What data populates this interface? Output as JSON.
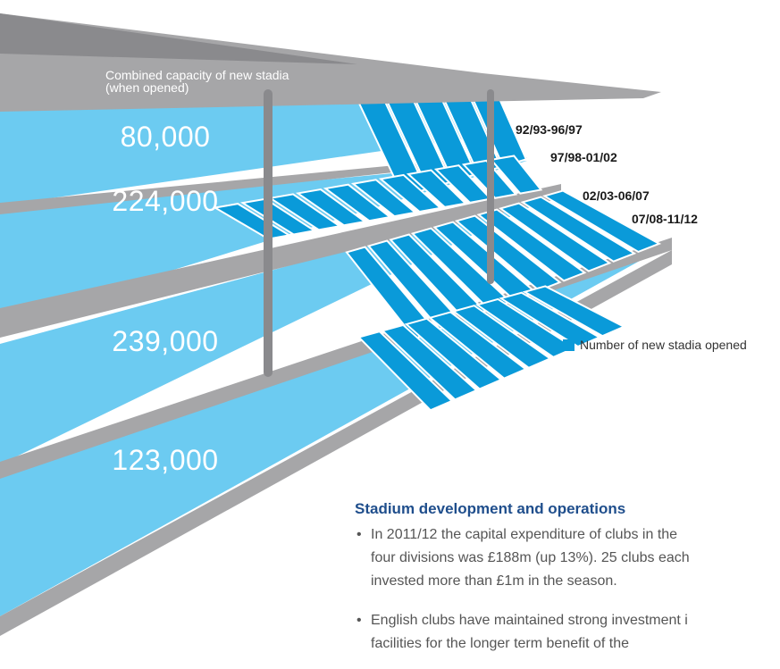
{
  "chart_data": {
    "type": "bar",
    "title": "",
    "xlabel": "",
    "ylabel": "Combined capacity of new stadia (when opened)",
    "categories": [
      "92/93-96/97",
      "97/98-01/02",
      "02/03-06/07",
      "07/08-11/12"
    ],
    "series": [
      {
        "name": "Combined capacity of new stadia (when opened)",
        "values": [
          80000,
          224000,
          239000,
          123000
        ],
        "display": [
          "80,000",
          "224,000",
          "239,000",
          "123,000"
        ]
      },
      {
        "name": "Number of new stadia opened",
        "values": [
          5,
          11,
          10,
          8
        ]
      }
    ]
  },
  "roof_caption": "Combined capacity of new stadia (when opened)",
  "legend": {
    "label": "Number of new stadia opened"
  },
  "colors": {
    "light_blue": "#6ccbf1",
    "dark_blue": "#0a9ad9",
    "grey": "#a6a6a8",
    "dark_grey": "#8a8a8d",
    "heading_blue": "#1f4e8c"
  },
  "text": {
    "heading": "Stadium development and operations",
    "bullet1": [
      "In 2011/12 the capital expenditure of clubs in the",
      "four divisions was £188m (up 13%). 25 clubs each",
      "invested more than £1m in the season."
    ],
    "bullet2": [
      "English clubs have maintained strong investment i",
      "facilities for the longer term benefit of the"
    ]
  }
}
